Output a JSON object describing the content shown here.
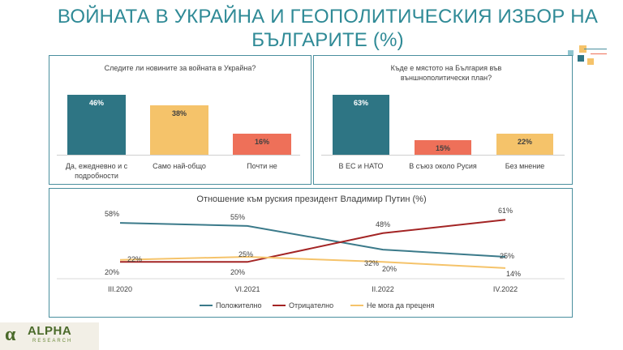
{
  "page": {
    "title": "ВОЙНАТА В УКРАЙНА И ГЕОПОЛИТИЧЕСКИЯ ИЗБОР НА БЪЛГАРИТЕ (%)",
    "logo_text": "ALPHA",
    "logo_sub": "RESEARCH",
    "logo_mark": "α"
  },
  "chart_data": [
    {
      "type": "bar",
      "title": "Следите ли новините за войната в Украйна?",
      "categories": [
        "Да, ежедневно и с подробности",
        "Само най-общо",
        "Почти не"
      ],
      "values": [
        46,
        38,
        16
      ],
      "value_labels": [
        "46%",
        "38%",
        "16%"
      ],
      "colors": [
        "#2e7584",
        "#f5c36a",
        "#ee7059"
      ],
      "ylim": [
        0,
        50
      ]
    },
    {
      "type": "bar",
      "title": "Къде е мястото на България във външнополитически план?",
      "categories": [
        "В ЕС и НАТО",
        "В съюз около Русия",
        "Без мнение"
      ],
      "values": [
        63,
        15,
        22
      ],
      "value_labels": [
        "63%",
        "15%",
        "22%"
      ],
      "colors": [
        "#2e7584",
        "#ee7059",
        "#f5c36a"
      ],
      "ylim": [
        0,
        68
      ]
    },
    {
      "type": "line",
      "title": "Отношение към руския президент Владимир Путин (%)",
      "categories": [
        "III.2020",
        "VI.2021",
        "II.2022",
        "IV.2022"
      ],
      "series": [
        {
          "name": "Положително",
          "values": [
            58,
            55,
            32,
            25
          ],
          "labels": [
            "58%",
            "55%",
            "32%",
            "25%"
          ],
          "color": "#3b7a8a"
        },
        {
          "name": "Отрицателно",
          "values": [
            20,
            20,
            48,
            61
          ],
          "labels": [
            "20%",
            "20%",
            "48%",
            "61%"
          ],
          "color": "#a32424"
        },
        {
          "name": "Не мога да преценя",
          "values": [
            22,
            25,
            20,
            14
          ],
          "labels": [
            "22%",
            "25%",
            "20%",
            "14%"
          ],
          "color": "#f5c36a"
        }
      ],
      "ylim": [
        0,
        70
      ]
    }
  ]
}
